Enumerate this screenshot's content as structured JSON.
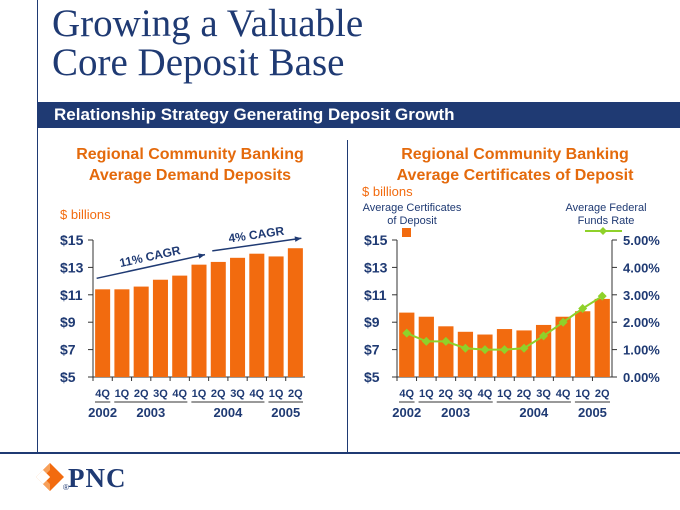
{
  "title": {
    "line1": "Growing a Valuable",
    "line2": "Core Deposit Base"
  },
  "banner": "Relationship Strategy Generating Deposit Growth",
  "logo": {
    "text": "PNC",
    "mark": "®"
  },
  "colors": {
    "navy": "#1f3a73",
    "orange": "#f26b0f",
    "green": "#8fd12a",
    "text": "#1f3a73"
  },
  "chart_data": [
    {
      "type": "bar",
      "title": "Regional Community Banking Average Demand Deposits",
      "title_lines": [
        "Regional Community Banking",
        "Average Demand Deposits"
      ],
      "unit_label": "$ billions",
      "ylim": [
        5,
        15
      ],
      "yticks": [
        15,
        13,
        11,
        9,
        7,
        5
      ],
      "ytick_labels": [
        "$15",
        "$13",
        "$11",
        "$9",
        "$7",
        "$5"
      ],
      "categories": [
        "4Q",
        "1Q",
        "2Q",
        "3Q",
        "4Q",
        "1Q",
        "2Q",
        "3Q",
        "4Q",
        "1Q",
        "2Q"
      ],
      "year_labels": [
        {
          "label": "2002",
          "from": 0,
          "to": 0
        },
        {
          "label": "2003",
          "from": 1,
          "to": 4
        },
        {
          "label": "2004",
          "from": 5,
          "to": 8
        },
        {
          "label": "2005",
          "from": 9,
          "to": 10
        }
      ],
      "values": [
        11.4,
        11.4,
        11.6,
        12.1,
        12.4,
        13.2,
        13.4,
        13.7,
        14.0,
        13.8,
        14.4
      ],
      "annotations": [
        {
          "text": "11% CAGR",
          "from": 0,
          "to": 5
        },
        {
          "text": "4% CAGR",
          "from": 6,
          "to": 10
        }
      ]
    },
    {
      "type": "bar+line",
      "title": "Regional Community Banking Average Certificates of Deposit",
      "title_lines": [
        "Regional Community Banking",
        "Average Certificates of Deposit"
      ],
      "unit_label": "$ billions",
      "ylim": [
        5,
        15
      ],
      "yticks": [
        15,
        13,
        11,
        9,
        7,
        5
      ],
      "ytick_labels": [
        "$15",
        "$13",
        "$11",
        "$9",
        "$7",
        "$5"
      ],
      "y2lim": [
        0,
        5
      ],
      "y2ticks": [
        5,
        4,
        3,
        2,
        1,
        0
      ],
      "y2tick_labels": [
        "5.00%",
        "4.00%",
        "3.00%",
        "2.00%",
        "1.00%",
        "0.00%"
      ],
      "categories": [
        "4Q",
        "1Q",
        "2Q",
        "3Q",
        "4Q",
        "1Q",
        "2Q",
        "3Q",
        "4Q",
        "1Q",
        "2Q"
      ],
      "year_labels": [
        {
          "label": "2002",
          "from": 0,
          "to": 0
        },
        {
          "label": "2003",
          "from": 1,
          "to": 4
        },
        {
          "label": "2004",
          "from": 5,
          "to": 8
        },
        {
          "label": "2005",
          "from": 9,
          "to": 10
        }
      ],
      "series": [
        {
          "name": "Average Certificates of Deposit",
          "name_lines": [
            "Average Certificates",
            "of Deposit"
          ],
          "kind": "bar",
          "values": [
            9.7,
            9.4,
            8.7,
            8.3,
            8.1,
            8.5,
            8.4,
            8.8,
            9.4,
            9.8,
            10.7
          ]
        },
        {
          "name": "Average Federal Funds Rate",
          "name_lines": [
            "Average Federal",
            "Funds Rate"
          ],
          "kind": "line",
          "values": [
            1.6,
            1.3,
            1.3,
            1.05,
            1.0,
            1.0,
            1.05,
            1.5,
            2.0,
            2.5,
            2.95
          ]
        }
      ]
    }
  ]
}
